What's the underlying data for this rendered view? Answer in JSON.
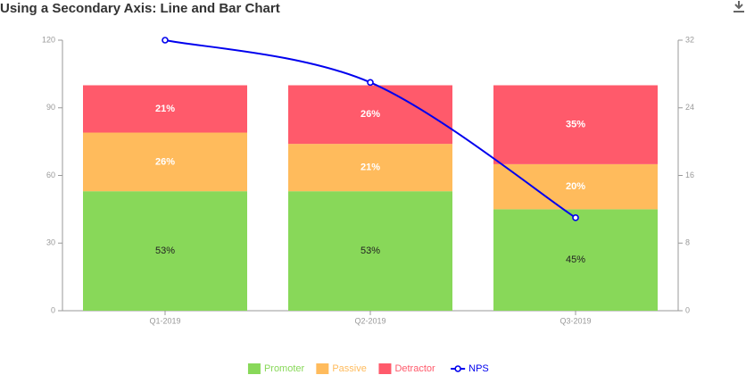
{
  "chart_data": {
    "type": "bar_line",
    "title": "Using a Secondary Axis: Line and Bar Chart",
    "categories": [
      "Q1-2019",
      "Q2-2019",
      "Q3-2019"
    ],
    "series": [
      {
        "name": "Promoter",
        "color": "#88d859",
        "values": [
          53,
          53,
          45
        ],
        "value_labels": [
          "53%",
          "53%",
          "45%"
        ]
      },
      {
        "name": "Passive",
        "color": "#ffbb5c",
        "values": [
          26,
          21,
          20
        ],
        "value_labels": [
          "26%",
          "21%",
          "20%"
        ]
      },
      {
        "name": "Detractor",
        "color": "#ff5a6b",
        "values": [
          21,
          26,
          35
        ],
        "value_labels": [
          "21%",
          "26%",
          "35%"
        ]
      },
      {
        "name": "NPS",
        "color": "#0000ee",
        "values": [
          32,
          27,
          11
        ],
        "axis": "y2",
        "type": "line"
      }
    ],
    "ylim": [
      0,
      120
    ],
    "yticks": [
      0,
      30,
      60,
      90,
      120
    ],
    "y2lim": [
      0,
      32
    ],
    "y2ticks": [
      0,
      8,
      16,
      24,
      32
    ],
    "stacked": true
  }
}
